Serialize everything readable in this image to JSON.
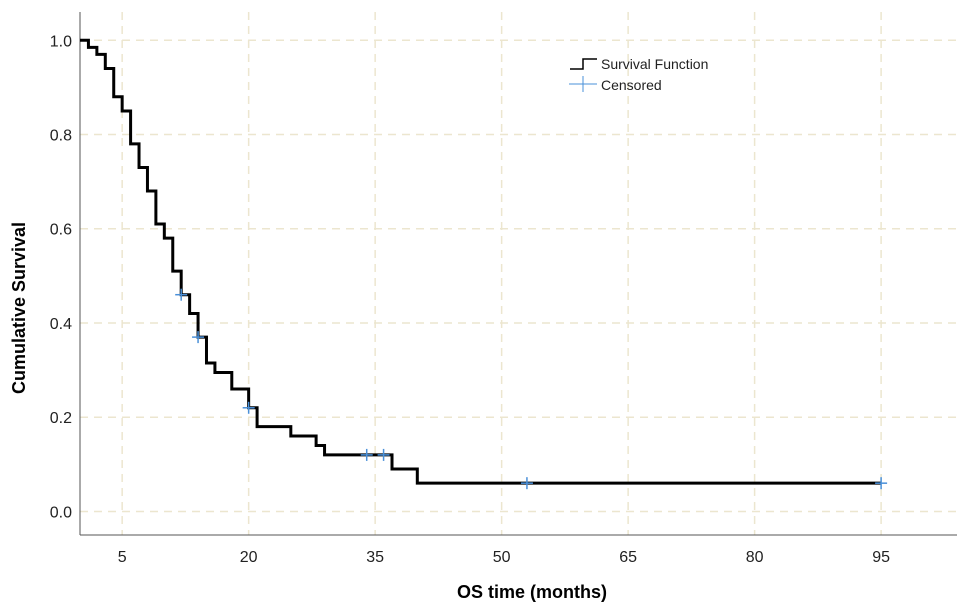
{
  "chart_data": {
    "type": "line",
    "subtype": "kaplan-meier",
    "xlabel": "OS time (months)",
    "ylabel": "Cumulative Survival",
    "xlim": [
      0,
      104
    ],
    "ylim": [
      -0.05,
      1.06
    ],
    "xticks": [
      5,
      20,
      35,
      50,
      65,
      80,
      95
    ],
    "yticks": [
      0.0,
      0.2,
      0.4,
      0.6,
      0.8,
      1.0
    ],
    "ytick_labels": [
      "0.0",
      "0.2",
      "0.4",
      "0.6",
      "0.8",
      "1.0"
    ],
    "grid": true,
    "legend_position": "top-right",
    "series": [
      {
        "name": "Survival Function",
        "color": "#000000",
        "step": true,
        "x": [
          0,
          1,
          2,
          3,
          4,
          5,
          6,
          7,
          8,
          9,
          10,
          11,
          12,
          13,
          14,
          15,
          16,
          18,
          20,
          21,
          25,
          28,
          29,
          34,
          37,
          40,
          95
        ],
        "y": [
          1.0,
          0.985,
          0.97,
          0.94,
          0.88,
          0.85,
          0.78,
          0.73,
          0.68,
          0.61,
          0.58,
          0.51,
          0.46,
          0.42,
          0.37,
          0.315,
          0.295,
          0.26,
          0.22,
          0.18,
          0.16,
          0.14,
          0.12,
          0.12,
          0.09,
          0.06,
          0.06
        ]
      },
      {
        "name": "Censored",
        "color": "#4a90d9",
        "marker": "+",
        "x": [
          12,
          14,
          20,
          34,
          36,
          53,
          95
        ],
        "y": [
          0.46,
          0.37,
          0.22,
          0.12,
          0.12,
          0.06,
          0.06
        ]
      }
    ]
  }
}
